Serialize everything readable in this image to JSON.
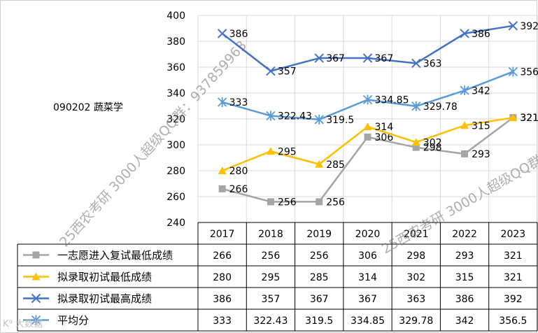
{
  "side_label": "090202 蔬菜学",
  "watermarks": [
    "25西农考研 3000人超级QQ群：937859963",
    "25西农考研 3000人超级QQ群："
  ],
  "corner_logo": "K⁹ 大数据",
  "chart_data": {
    "type": "line",
    "title": "",
    "xlabel": "",
    "ylabel": "",
    "ylim": [
      240,
      400
    ],
    "yticks": [
      240,
      260,
      280,
      300,
      320,
      340,
      360,
      380,
      400
    ],
    "grid": true,
    "legend_placement": "table",
    "categories": [
      "2017",
      "2018",
      "2019",
      "2020",
      "2021",
      "2022",
      "2023"
    ],
    "series": [
      {
        "name": "一志愿进入复试最低成绩",
        "color": "#a5a5a5",
        "marker": "square",
        "values": [
          266,
          256,
          256,
          306,
          298,
          293,
          321
        ],
        "labels": [
          "266",
          "256",
          "256",
          "306",
          "298",
          "293",
          "321"
        ]
      },
      {
        "name": "拟录取初试最低成绩",
        "color": "#ffc000",
        "marker": "triangle",
        "values": [
          280,
          295,
          285,
          314,
          302,
          315,
          321
        ],
        "labels": [
          "280",
          "295",
          "285",
          "314",
          "302",
          "315",
          "321"
        ]
      },
      {
        "name": "拟录取初试最高成绩",
        "color": "#4472c4",
        "marker": "x",
        "values": [
          386,
          357,
          367,
          367,
          363,
          386,
          392
        ],
        "labels": [
          "386",
          "357",
          "367",
          "367",
          "363",
          "386",
          "392"
        ]
      },
      {
        "name": "平均分",
        "color": "#5b9bd5",
        "marker": "star",
        "values": [
          333,
          322.43,
          319.5,
          334.85,
          329.78,
          342,
          356.5
        ],
        "labels": [
          "333",
          "322.43",
          "319.5",
          "334.85",
          "329.78",
          "342",
          "356.5"
        ]
      }
    ]
  }
}
